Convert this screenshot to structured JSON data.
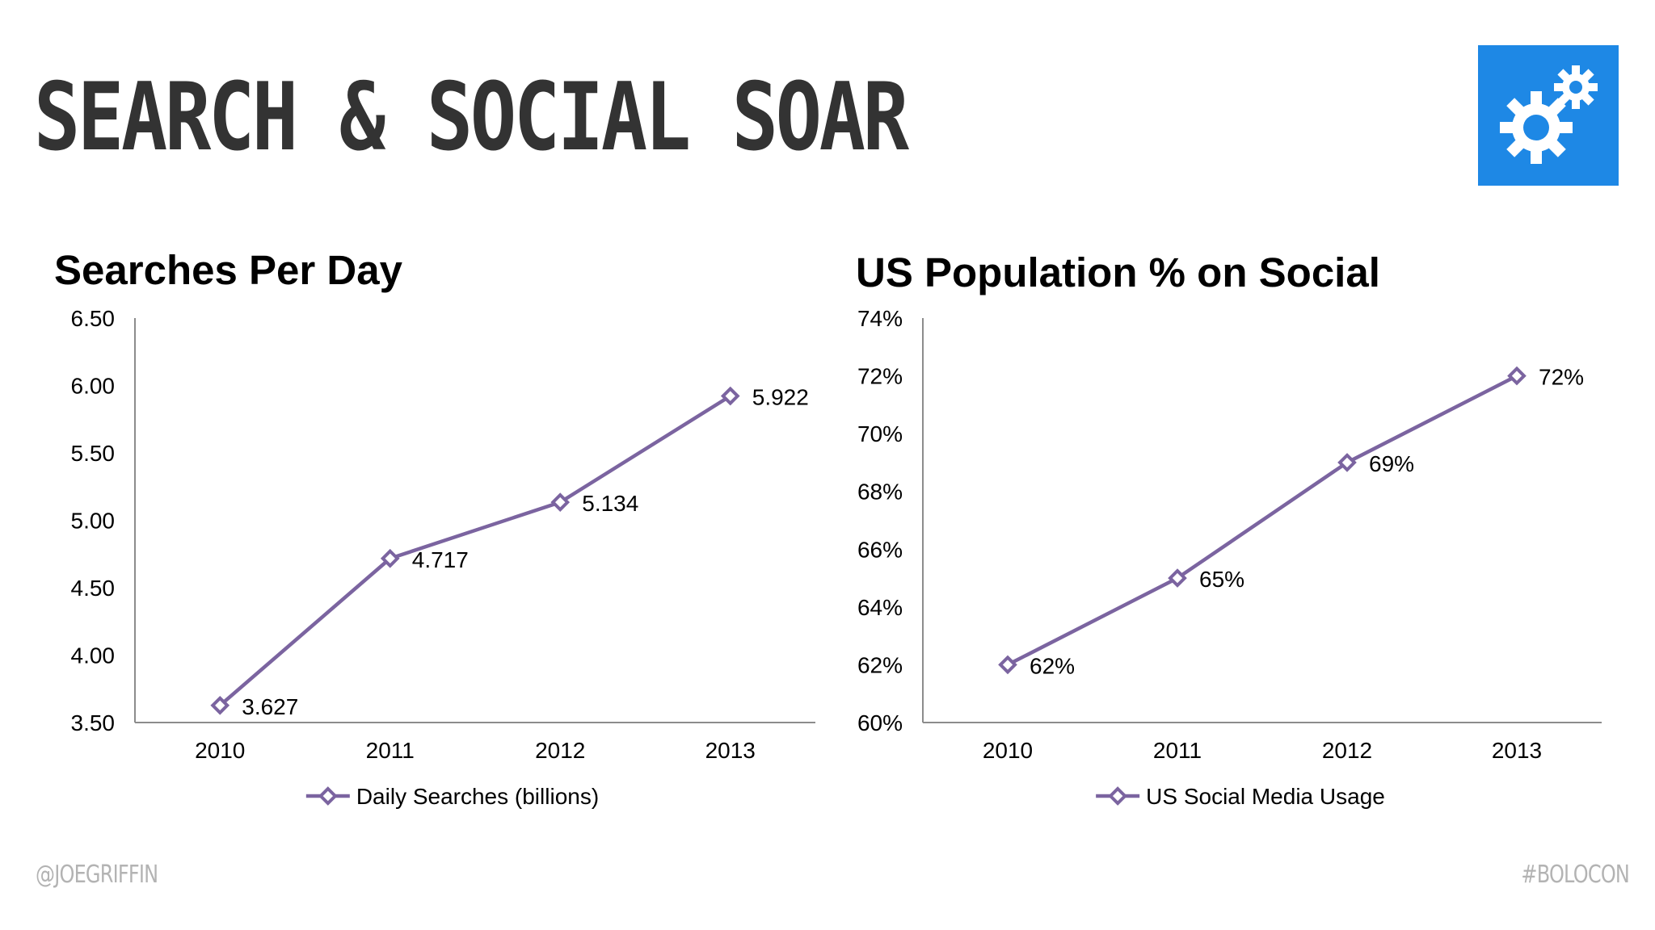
{
  "slide": {
    "title": "SEARCH & SOCIAL SOAR",
    "footer_left": "@JOEGRIFFIN",
    "footer_right": "#BOLOCON",
    "logo_icon": "gears-icon",
    "logo_color": "#1e88e5"
  },
  "chart_data": [
    {
      "type": "line",
      "title": "Searches Per Day",
      "categories": [
        "2010",
        "2011",
        "2012",
        "2013"
      ],
      "series": [
        {
          "name": "Daily Searches (billions)",
          "values": [
            3.627,
            4.717,
            5.134,
            5.922
          ],
          "data_labels": [
            "3.627",
            "4.717",
            "5.134",
            "5.922"
          ],
          "color": "#7b64a0",
          "marker": "diamond-open"
        }
      ],
      "ylim": [
        3.5,
        6.5
      ],
      "yticks": [
        3.5,
        4.0,
        4.5,
        5.0,
        5.5,
        6.0,
        6.5
      ],
      "ytick_labels": [
        "3.50",
        "4.00",
        "4.50",
        "5.00",
        "5.50",
        "6.00",
        "6.50"
      ],
      "xlabel": "",
      "ylabel": "",
      "grid": false,
      "legend": "bottom"
    },
    {
      "type": "line",
      "title": "US Population % on Social",
      "categories": [
        "2010",
        "2011",
        "2012",
        "2013"
      ],
      "series": [
        {
          "name": "US Social Media Usage",
          "values": [
            62,
            65,
            69,
            72
          ],
          "data_labels": [
            "62%",
            "65%",
            "69%",
            "72%"
          ],
          "color": "#7b64a0",
          "marker": "diamond-open"
        }
      ],
      "ylim": [
        60,
        74
      ],
      "yticks": [
        60,
        62,
        64,
        66,
        68,
        70,
        72,
        74
      ],
      "ytick_labels": [
        "60%",
        "62%",
        "64%",
        "66%",
        "68%",
        "70%",
        "72%",
        "74%"
      ],
      "xlabel": "",
      "ylabel": "",
      "grid": false,
      "legend": "bottom"
    }
  ]
}
